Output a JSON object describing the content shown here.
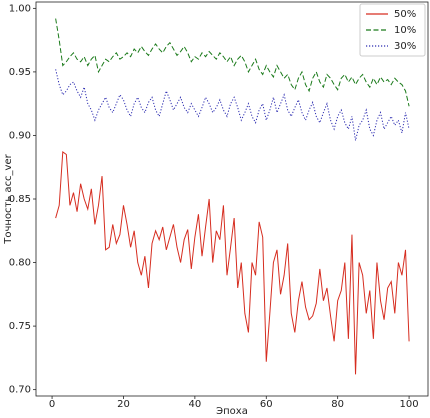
{
  "chart_data": {
    "type": "line",
    "xlabel": "Эпоха",
    "ylabel": "Точность acc_ver",
    "x": [
      1,
      2,
      3,
      4,
      5,
      6,
      7,
      8,
      9,
      10,
      11,
      12,
      13,
      14,
      15,
      16,
      17,
      18,
      19,
      20,
      21,
      22,
      23,
      24,
      25,
      26,
      27,
      28,
      29,
      30,
      31,
      32,
      33,
      34,
      35,
      36,
      37,
      38,
      39,
      40,
      41,
      42,
      43,
      44,
      45,
      46,
      47,
      48,
      49,
      50,
      51,
      52,
      53,
      54,
      55,
      56,
      57,
      58,
      59,
      60,
      61,
      62,
      63,
      64,
      65,
      66,
      67,
      68,
      69,
      70,
      71,
      72,
      73,
      74,
      75,
      76,
      77,
      78,
      79,
      80,
      81,
      82,
      83,
      84,
      85,
      86,
      87,
      88,
      89,
      90,
      91,
      92,
      93,
      94,
      95,
      96,
      97,
      98,
      99,
      100
    ],
    "series": [
      {
        "name": "50%",
        "color": "#d62d20",
        "linestyle": "solid",
        "values": [
          0.835,
          0.845,
          0.887,
          0.885,
          0.845,
          0.855,
          0.84,
          0.862,
          0.85,
          0.842,
          0.858,
          0.83,
          0.845,
          0.868,
          0.81,
          0.812,
          0.83,
          0.815,
          0.822,
          0.845,
          0.83,
          0.812,
          0.825,
          0.8,
          0.79,
          0.805,
          0.78,
          0.815,
          0.825,
          0.818,
          0.828,
          0.81,
          0.82,
          0.83,
          0.812,
          0.8,
          0.818,
          0.826,
          0.795,
          0.82,
          0.838,
          0.805,
          0.828,
          0.85,
          0.8,
          0.825,
          0.818,
          0.845,
          0.79,
          0.812,
          0.835,
          0.78,
          0.8,
          0.76,
          0.745,
          0.8,
          0.79,
          0.832,
          0.82,
          0.722,
          0.76,
          0.8,
          0.81,
          0.775,
          0.79,
          0.815,
          0.76,
          0.745,
          0.77,
          0.785,
          0.765,
          0.755,
          0.758,
          0.768,
          0.795,
          0.77,
          0.78,
          0.758,
          0.738,
          0.77,
          0.778,
          0.8,
          0.74,
          0.822,
          0.712,
          0.8,
          0.79,
          0.76,
          0.778,
          0.74,
          0.8,
          0.77,
          0.755,
          0.78,
          0.785,
          0.76,
          0.8,
          0.79,
          0.81,
          0.738
        ]
      },
      {
        "name": "10%",
        "color": "#1a7a1a",
        "linestyle": "dashed",
        "values": [
          0.992,
          0.975,
          0.955,
          0.958,
          0.962,
          0.965,
          0.96,
          0.958,
          0.962,
          0.955,
          0.96,
          0.963,
          0.95,
          0.955,
          0.96,
          0.958,
          0.962,
          0.965,
          0.96,
          0.962,
          0.965,
          0.962,
          0.968,
          0.965,
          0.97,
          0.966,
          0.963,
          0.968,
          0.972,
          0.968,
          0.965,
          0.97,
          0.973,
          0.968,
          0.963,
          0.966,
          0.97,
          0.965,
          0.958,
          0.962,
          0.96,
          0.965,
          0.962,
          0.966,
          0.963,
          0.96,
          0.965,
          0.962,
          0.958,
          0.962,
          0.955,
          0.96,
          0.963,
          0.958,
          0.95,
          0.955,
          0.96,
          0.952,
          0.948,
          0.955,
          0.95,
          0.946,
          0.955,
          0.95,
          0.945,
          0.948,
          0.94,
          0.936,
          0.945,
          0.95,
          0.94,
          0.935,
          0.945,
          0.95,
          0.942,
          0.938,
          0.948,
          0.945,
          0.94,
          0.936,
          0.945,
          0.948,
          0.942,
          0.946,
          0.94,
          0.945,
          0.948,
          0.942,
          0.938,
          0.945,
          0.94,
          0.946,
          0.942,
          0.944,
          0.94,
          0.945,
          0.942,
          0.94,
          0.935,
          0.923
        ]
      },
      {
        "name": "30%",
        "color": "#2b2bb0",
        "linestyle": "dotted",
        "values": [
          0.952,
          0.94,
          0.932,
          0.935,
          0.94,
          0.942,
          0.935,
          0.93,
          0.938,
          0.925,
          0.92,
          0.912,
          0.92,
          0.925,
          0.93,
          0.922,
          0.918,
          0.925,
          0.932,
          0.928,
          0.92,
          0.915,
          0.925,
          0.93,
          0.922,
          0.918,
          0.926,
          0.93,
          0.92,
          0.915,
          0.925,
          0.935,
          0.928,
          0.92,
          0.925,
          0.93,
          0.922,
          0.918,
          0.925,
          0.92,
          0.915,
          0.922,
          0.93,
          0.925,
          0.918,
          0.922,
          0.928,
          0.92,
          0.915,
          0.925,
          0.93,
          0.922,
          0.912,
          0.918,
          0.925,
          0.915,
          0.91,
          0.92,
          0.925,
          0.912,
          0.92,
          0.93,
          0.918,
          0.925,
          0.932,
          0.92,
          0.915,
          0.922,
          0.928,
          0.918,
          0.912,
          0.92,
          0.926,
          0.915,
          0.91,
          0.918,
          0.925,
          0.912,
          0.905,
          0.915,
          0.92,
          0.91,
          0.905,
          0.915,
          0.896,
          0.908,
          0.912,
          0.92,
          0.905,
          0.9,
          0.912,
          0.918,
          0.905,
          0.91,
          0.915,
          0.908,
          0.912,
          0.902,
          0.918,
          0.905
        ]
      }
    ],
    "xlim": [
      -4.5,
      105.3
    ],
    "xticks": [
      0,
      20,
      40,
      60,
      80,
      100
    ],
    "ylim": [
      0.695,
      1.005
    ],
    "yticks": [
      {
        "value": 0.7,
        "label": "0.70"
      },
      {
        "value": 0.75,
        "label": "0.75"
      },
      {
        "value": 0.8,
        "label": "0.80"
      },
      {
        "value": 0.85,
        "label": "0.85"
      },
      {
        "value": 0.9,
        "label": "0.90"
      },
      {
        "value": 0.95,
        "label": "0.95"
      },
      {
        "value": 1.0,
        "label": "1.00"
      }
    ],
    "legend": "upper right",
    "grid": false
  }
}
